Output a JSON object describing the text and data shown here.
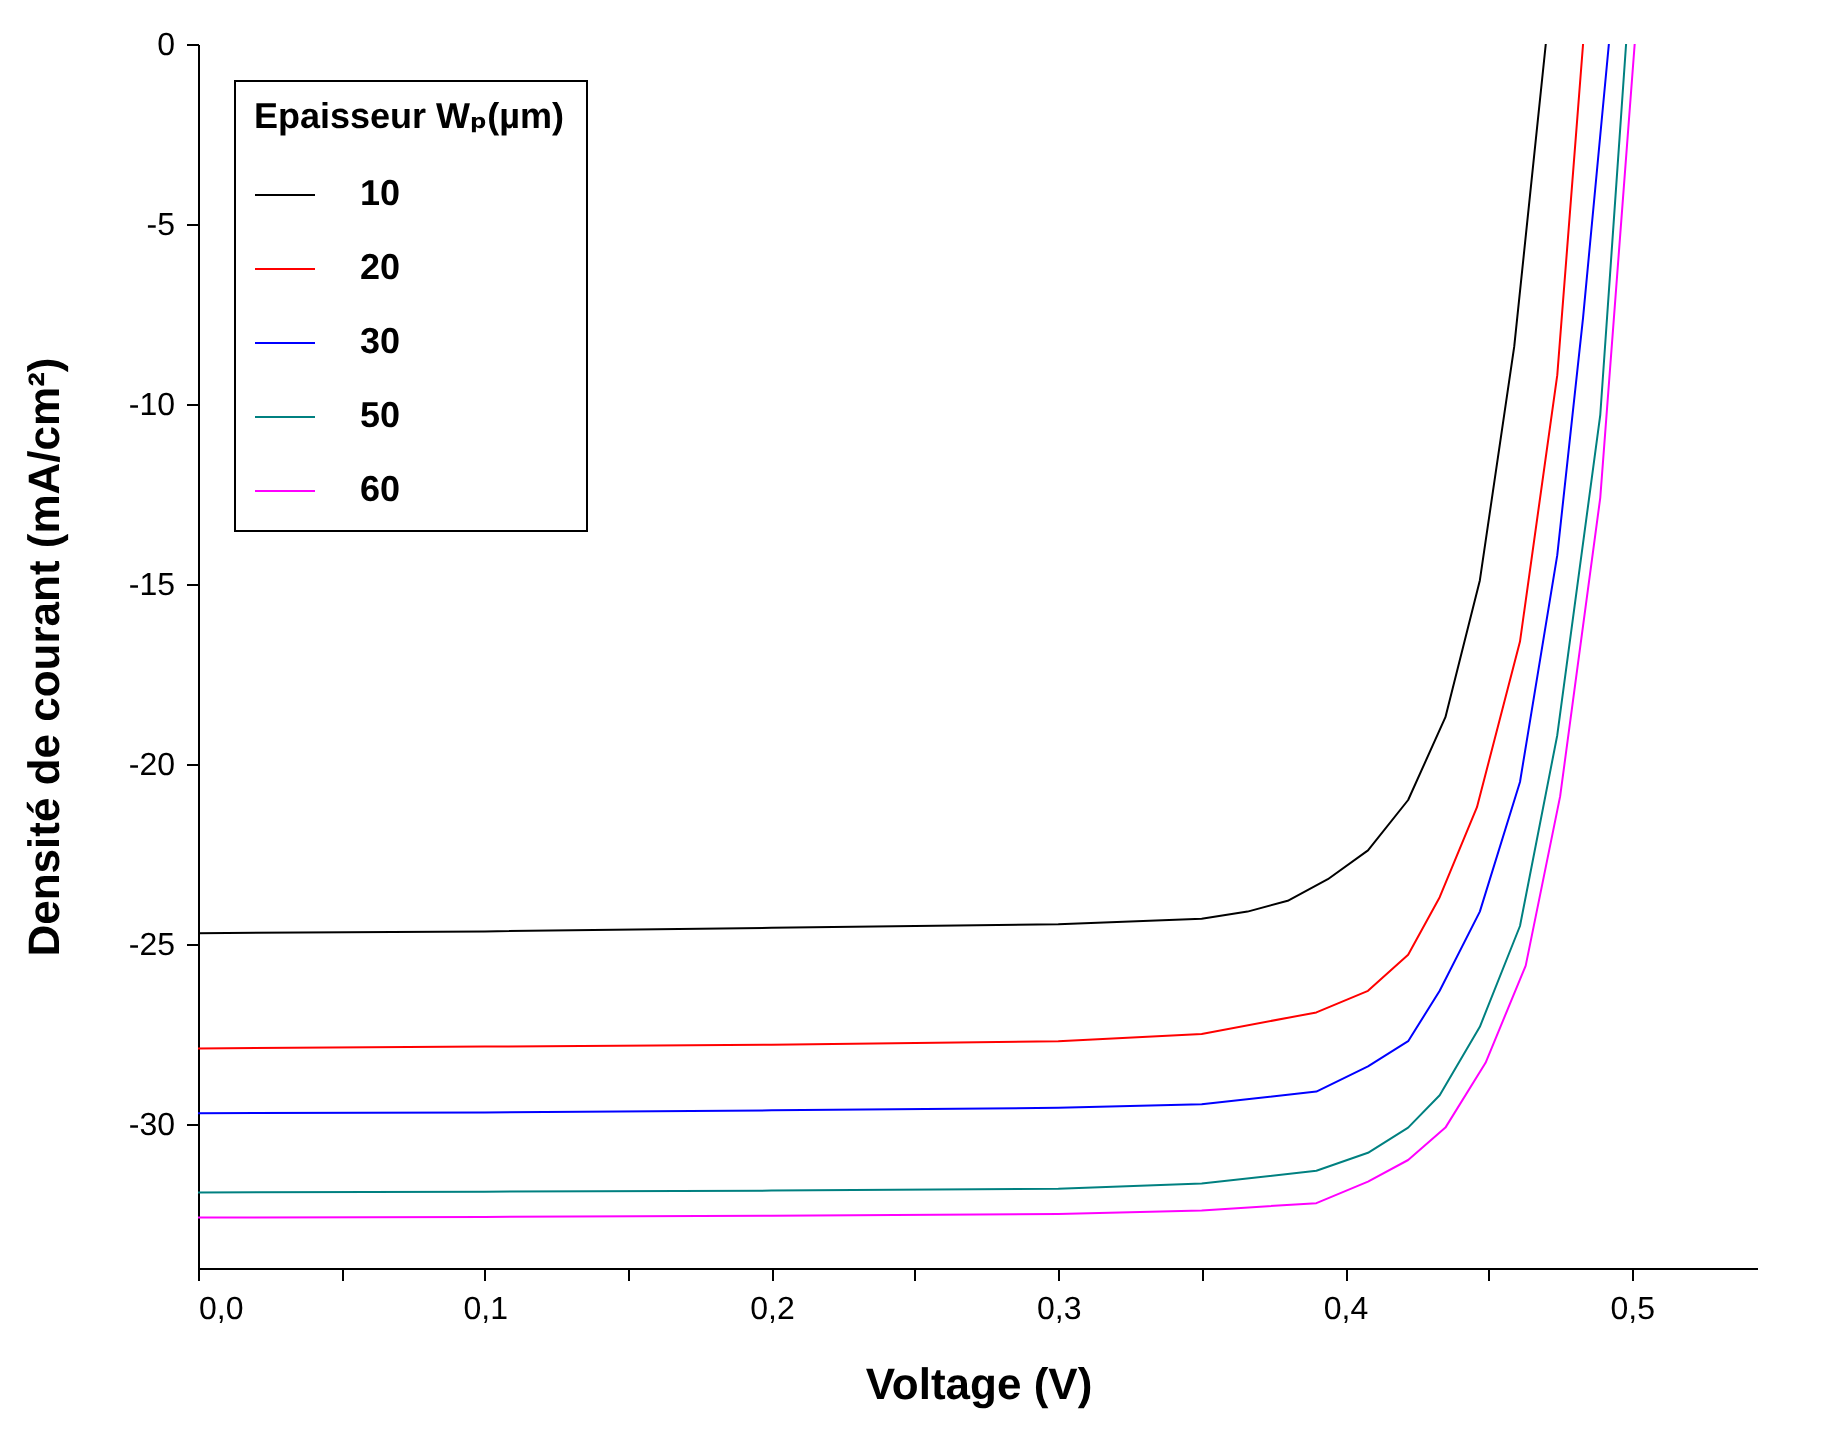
{
  "chart_data": {
    "type": "line",
    "xlabel": "Voltage (V)",
    "ylabel": "Densité de courant (mA/cm²)",
    "legend_title": "Epaisseur Wₚ(µm)",
    "legend": "top left",
    "grid": false,
    "line_style": "solid",
    "marker": "none",
    "xlim": [
      0,
      0.544
    ],
    "ylim": [
      -34,
      0
    ],
    "xticks": [
      {
        "value": 0,
        "label": "0,0"
      },
      {
        "value": 0.05,
        "label": null
      },
      {
        "value": 0.1,
        "label": "0,1"
      },
      {
        "value": 0.15,
        "label": null
      },
      {
        "value": 0.2,
        "label": "0,2"
      },
      {
        "value": 0.25,
        "label": null
      },
      {
        "value": 0.3,
        "label": "0,3"
      },
      {
        "value": 0.35,
        "label": null
      },
      {
        "value": 0.4,
        "label": "0,4"
      },
      {
        "value": 0.45,
        "label": null
      },
      {
        "value": 0.5,
        "label": "0,5"
      }
    ],
    "yticks": [
      -30,
      -25,
      -20,
      -15,
      -10,
      -5,
      0
    ],
    "series": [
      {
        "name": "10",
        "color": "#000000",
        "x": [
          0,
          0.1,
          0.2,
          0.3,
          0.35,
          0.366,
          0.38,
          0.394,
          0.408,
          0.422,
          0.435,
          0.447,
          0.459,
          0.47
        ],
        "values": [
          -24.7,
          -24.65,
          -24.55,
          -24.45,
          -24.3,
          -24.1,
          -23.8,
          -23.2,
          -22.4,
          -21,
          -18.7,
          -14.9,
          -8.4,
          0
        ]
      },
      {
        "name": "20",
        "color": "#ff0000",
        "x": [
          0,
          0.1,
          0.2,
          0.3,
          0.35,
          0.39,
          0.408,
          0.422,
          0.433,
          0.446,
          0.461,
          0.474,
          0.483
        ],
        "values": [
          -27.9,
          -27.85,
          -27.8,
          -27.7,
          -27.5,
          -26.9,
          -26.3,
          -25.3,
          -23.7,
          -21.2,
          -16.6,
          -9.2,
          0
        ]
      },
      {
        "name": "30",
        "color": "#0000ff",
        "x": [
          0,
          0.1,
          0.2,
          0.3,
          0.35,
          0.39,
          0.408,
          0.422,
          0.433,
          0.447,
          0.461,
          0.474,
          0.483,
          0.492
        ],
        "values": [
          -29.7,
          -29.68,
          -29.62,
          -29.55,
          -29.45,
          -29.1,
          -28.4,
          -27.7,
          -26.3,
          -24.1,
          -20.5,
          -14.2,
          -7.6,
          0
        ]
      },
      {
        "name": "50",
        "color": "#008080",
        "x": [
          0,
          0.1,
          0.2,
          0.3,
          0.35,
          0.39,
          0.408,
          0.422,
          0.433,
          0.447,
          0.461,
          0.474,
          0.489,
          0.498
        ],
        "values": [
          -31.9,
          -31.88,
          -31.85,
          -31.8,
          -31.65,
          -31.3,
          -30.8,
          -30.1,
          -29.2,
          -27.3,
          -24.5,
          -19.2,
          -10.3,
          0
        ]
      },
      {
        "name": "60",
        "color": "#ff00ff",
        "x": [
          0,
          0.1,
          0.2,
          0.3,
          0.35,
          0.39,
          0.408,
          0.422,
          0.435,
          0.449,
          0.463,
          0.475,
          0.489,
          0.501
        ],
        "values": [
          -32.6,
          -32.58,
          -32.55,
          -32.5,
          -32.4,
          -32.2,
          -31.6,
          -31,
          -30.1,
          -28.3,
          -25.6,
          -20.9,
          -12.6,
          0
        ]
      }
    ]
  }
}
